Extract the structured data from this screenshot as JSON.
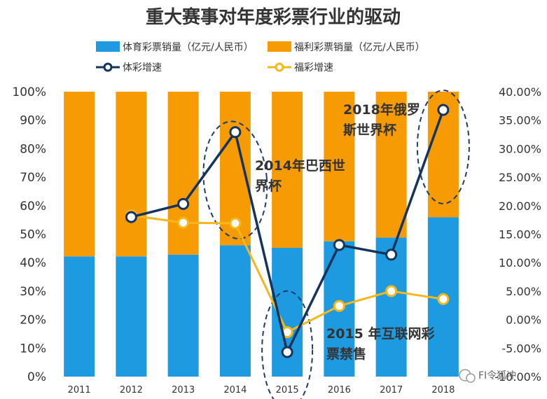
{
  "chart_data": {
    "type": "bar",
    "title": "重大赛事对年度彩票行业的驱动",
    "categories": [
      "2011",
      "2012",
      "2013",
      "2014",
      "2015",
      "2016",
      "2017",
      "2018"
    ],
    "y_left": {
      "ticks": [
        "0%",
        "10%",
        "20%",
        "30%",
        "40%",
        "50%",
        "60%",
        "70%",
        "80%",
        "90%",
        "100%"
      ],
      "ylim": [
        0,
        100
      ]
    },
    "y_right": {
      "ticks": [
        "-10.00%",
        "-5.00%",
        "0.00%",
        "5.00%",
        "10.00%",
        "15.00%",
        "20.00%",
        "25.00%",
        "30.00%",
        "35.00%",
        "40.00%"
      ],
      "ylim": [
        -10,
        40
      ]
    },
    "bar_series": [
      {
        "name": "体育彩票销量（亿元/人民币）",
        "color": "#1e9ae0",
        "values": [
          42.2,
          42.2,
          42.8,
          46.1,
          45.2,
          47.5,
          48.8,
          55.9
        ]
      },
      {
        "name": "福利彩票销量（亿元/人民币）",
        "color": "#f79b05",
        "values": [
          57.8,
          57.8,
          57.2,
          53.9,
          54.8,
          52.5,
          51.2,
          44.1
        ]
      }
    ],
    "line_series": [
      {
        "name": "体彩增速",
        "color": "#14345c",
        "values": [
          null,
          18.0,
          20.3,
          32.9,
          -5.7,
          13.1,
          11.4,
          36.8
        ]
      },
      {
        "name": "福彩增速",
        "color": "#f5b81c",
        "values": [
          null,
          18.3,
          17.0,
          16.9,
          -2.2,
          2.4,
          5.0,
          3.6
        ]
      }
    ],
    "annotations": [
      {
        "lines": [
          "2014年巴西世",
          "界杯"
        ],
        "category": "2014"
      },
      {
        "lines": [
          "2015 年互联网彩",
          "票禁售"
        ],
        "category": "2015"
      },
      {
        "lines": [
          "2018年俄罗",
          "斯世界杯"
        ],
        "category": "2018"
      }
    ],
    "watermark": "FI令狐冲"
  }
}
